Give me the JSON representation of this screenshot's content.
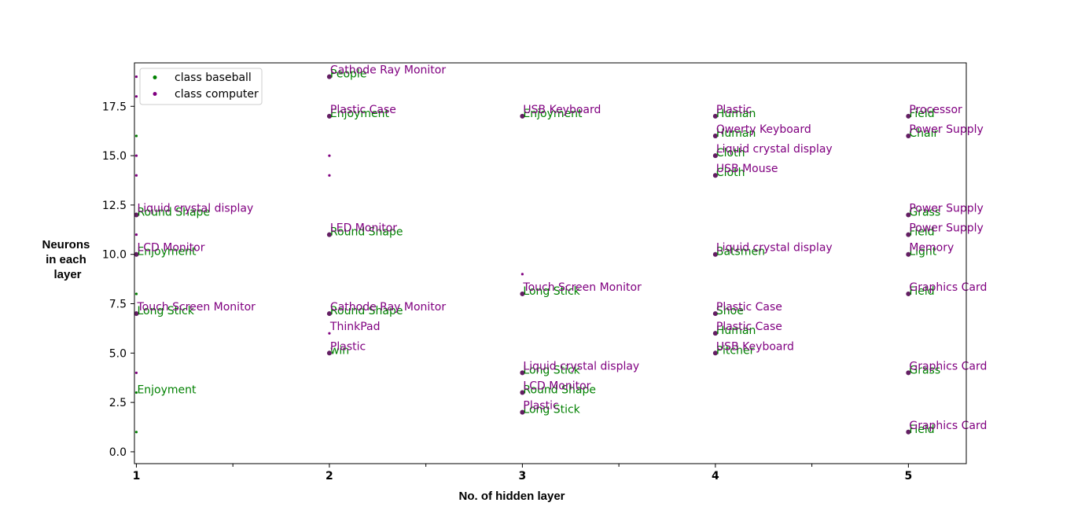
{
  "chart_data": {
    "type": "scatter",
    "title": "",
    "xlabel": "No. of hidden layer",
    "ylabel_lines": [
      "Neurons",
      "in each",
      "layer"
    ],
    "xlim": [
      0.99,
      5.3
    ],
    "ylim": [
      -0.6,
      19.7
    ],
    "x_ticks": [
      1,
      2,
      3,
      4,
      5
    ],
    "x_minor_ticks": [
      1.5,
      2.5,
      3.5,
      4.5
    ],
    "y_ticks": [
      0.0,
      2.5,
      5.0,
      7.5,
      10.0,
      12.5,
      15.0,
      17.5
    ],
    "y_tick_labels": [
      "0.0",
      "2.5",
      "5.0",
      "7.5",
      "10.0",
      "12.5",
      "15.0",
      "17.5"
    ],
    "grid": false,
    "legend_position": "top-left",
    "colors": {
      "baseball": "#008000",
      "computer": "#800080",
      "overlap": "#444444"
    },
    "series": [
      {
        "name": "class baseball",
        "color": "#008000",
        "points": [
          {
            "x": 1,
            "y": 12,
            "label": "Round Shape"
          },
          {
            "x": 1,
            "y": 10,
            "label": "Enjoyment"
          },
          {
            "x": 1,
            "y": 7,
            "label": "Long Stick"
          },
          {
            "x": 1,
            "y": 3,
            "label": "Enjoyment"
          },
          {
            "x": 1,
            "y": 16,
            "label": ""
          },
          {
            "x": 1,
            "y": 8,
            "label": ""
          },
          {
            "x": 1,
            "y": 1,
            "label": ""
          },
          {
            "x": 2,
            "y": 19,
            "label": "People"
          },
          {
            "x": 2,
            "y": 17,
            "label": "Enjoyment"
          },
          {
            "x": 2,
            "y": 11,
            "label": "Round Shape"
          },
          {
            "x": 2,
            "y": 7,
            "label": "Round Shape"
          },
          {
            "x": 2,
            "y": 5,
            "label": "win"
          },
          {
            "x": 3,
            "y": 17,
            "label": "Enjoyment"
          },
          {
            "x": 3,
            "y": 8,
            "label": "Long Stick"
          },
          {
            "x": 3,
            "y": 4,
            "label": "Long Stick"
          },
          {
            "x": 3,
            "y": 3,
            "label": "Round Shape"
          },
          {
            "x": 3,
            "y": 2,
            "label": "Long Stick"
          },
          {
            "x": 4,
            "y": 17,
            "label": "Human"
          },
          {
            "x": 4,
            "y": 16,
            "label": "Human"
          },
          {
            "x": 4,
            "y": 15,
            "label": "Cloth"
          },
          {
            "x": 4,
            "y": 14,
            "label": "Cloth"
          },
          {
            "x": 4,
            "y": 10,
            "label": "Batsmen"
          },
          {
            "x": 4,
            "y": 7,
            "label": "Shoe"
          },
          {
            "x": 4,
            "y": 6,
            "label": "Human"
          },
          {
            "x": 4,
            "y": 5,
            "label": "Pitcher"
          },
          {
            "x": 5,
            "y": 17,
            "label": "Field"
          },
          {
            "x": 5,
            "y": 16,
            "label": "Chair"
          },
          {
            "x": 5,
            "y": 12,
            "label": "Grass"
          },
          {
            "x": 5,
            "y": 11,
            "label": "Field"
          },
          {
            "x": 5,
            "y": 10,
            "label": "Light"
          },
          {
            "x": 5,
            "y": 8,
            "label": "Field"
          },
          {
            "x": 5,
            "y": 4,
            "label": "Grass"
          },
          {
            "x": 5,
            "y": 1,
            "label": "Field"
          }
        ]
      },
      {
        "name": "class computer",
        "color": "#800080",
        "points": [
          {
            "x": 1,
            "y": 19,
            "label": ""
          },
          {
            "x": 1,
            "y": 18,
            "label": ""
          },
          {
            "x": 1,
            "y": 15,
            "label": ""
          },
          {
            "x": 1,
            "y": 14,
            "label": ""
          },
          {
            "x": 1,
            "y": 12,
            "label": "Liquid crystal display"
          },
          {
            "x": 1,
            "y": 11,
            "label": ""
          },
          {
            "x": 1,
            "y": 10,
            "label": "LCD Monitor"
          },
          {
            "x": 1,
            "y": 7,
            "label": "Touch Screen Monitor"
          },
          {
            "x": 1,
            "y": 4,
            "label": ""
          },
          {
            "x": 2,
            "y": 19,
            "label": "Cathode Ray Monitor"
          },
          {
            "x": 2,
            "y": 17,
            "label": "Plastic Case"
          },
          {
            "x": 2,
            "y": 15,
            "label": ""
          },
          {
            "x": 2,
            "y": 14,
            "label": ""
          },
          {
            "x": 2,
            "y": 11,
            "label": "LED Monitor"
          },
          {
            "x": 2,
            "y": 7,
            "label": "Cathode Ray Monitor"
          },
          {
            "x": 2,
            "y": 6,
            "label": "ThinkPad"
          },
          {
            "x": 2,
            "y": 5,
            "label": "Plastic"
          },
          {
            "x": 3,
            "y": 17,
            "label": "USB Keyboard"
          },
          {
            "x": 3,
            "y": 9,
            "label": ""
          },
          {
            "x": 3,
            "y": 8,
            "label": "Touch Screen Monitor"
          },
          {
            "x": 3,
            "y": 4,
            "label": "Liquid crystal display"
          },
          {
            "x": 3,
            "y": 3,
            "label": "LCD Monitor"
          },
          {
            "x": 3,
            "y": 2,
            "label": "Plastic"
          },
          {
            "x": 4,
            "y": 17,
            "label": "Plastic"
          },
          {
            "x": 4,
            "y": 16,
            "label": "Qwerty Keyboard"
          },
          {
            "x": 4,
            "y": 15,
            "label": "Liquid crystal display"
          },
          {
            "x": 4,
            "y": 14,
            "label": "USB Mouse"
          },
          {
            "x": 4,
            "y": 10,
            "label": "Liquid crystal display"
          },
          {
            "x": 4,
            "y": 7,
            "label": "Plastic Case"
          },
          {
            "x": 4,
            "y": 6,
            "label": "Plastic Case"
          },
          {
            "x": 4,
            "y": 5,
            "label": "USB Keyboard"
          },
          {
            "x": 5,
            "y": 17,
            "label": "Processor"
          },
          {
            "x": 5,
            "y": 16,
            "label": "Power Supply"
          },
          {
            "x": 5,
            "y": 12,
            "label": "Power Supply"
          },
          {
            "x": 5,
            "y": 11,
            "label": "Power Supply"
          },
          {
            "x": 5,
            "y": 10,
            "label": "Memory"
          },
          {
            "x": 5,
            "y": 8,
            "label": "Graphics Card"
          },
          {
            "x": 5,
            "y": 4,
            "label": "Graphics Card"
          },
          {
            "x": 5,
            "y": 1,
            "label": "Graphics Card"
          }
        ]
      }
    ]
  }
}
